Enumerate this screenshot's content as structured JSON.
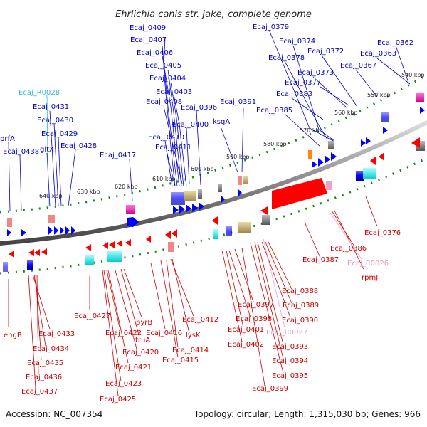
{
  "title": "Ehrlichia canis str. Jake, complete genome",
  "footer": {
    "accession": "Accession: NC_007354",
    "summary": "Topology: circular; Length: 1,315,030 bp; Genes: 966"
  },
  "colors": {
    "forward_gene": "#0000ff",
    "reverse_gene": "#ff0000",
    "rna_forward": "#33bbdd",
    "rna_reverse": "#f0a0c8",
    "backbone": "#888888",
    "tick_dots": "#118811",
    "ruler_text": "#222222"
  },
  "ruler_ticks": [
    "540 kbp",
    "550 kbp",
    "560 kbp",
    "570 kbp",
    "580 kbp",
    "590 kbp",
    "600 kbp",
    "610 kbp",
    "620 kbp",
    "630 kbp",
    "640 kbp"
  ],
  "forward_labels": [
    "Ecaj_0409",
    "Ecaj_0407",
    "Ecaj_0406",
    "Ecaj_0405",
    "Ecaj_0404",
    "Ecaj_0403",
    "Ecaj_0408",
    "Ecaj_0400",
    "Ecaj_0410",
    "Ecaj_0411",
    "Ecaj_0417",
    "Ecaj_0396",
    "ksgA",
    "Ecaj_0391",
    "Ecaj_0385",
    "Ecaj_0379",
    "Ecaj_0374",
    "Ecaj_0378",
    "Ecaj_0372",
    "Ecaj_0373",
    "Ecaj_0377",
    "Ecaj_0383",
    "Ecaj_0367",
    "Ecaj_0363",
    "Ecaj_0362",
    "Ecaj_0431",
    "Ecaj_0430",
    "Ecaj_0429",
    "gltX",
    "Ecaj_0428",
    "prfA",
    "Ecaj_0438"
  ],
  "rna_forward_labels": [
    "Ecaj_R0028"
  ],
  "reverse_labels": [
    "engB",
    "Ecaj_0433",
    "Ecaj_0434",
    "Ecaj_0435",
    "Ecaj_0436",
    "Ecaj_0437",
    "Ecaj_0427",
    "Ecaj_0422",
    "Ecaj_0421",
    "Ecaj_0423",
    "Ecaj_0425",
    "pyrB",
    "truA",
    "Ecaj_0420",
    "Ecaj_0416",
    "Ecaj_0412",
    "lysK",
    "Ecaj_0414",
    "Ecaj_0415",
    "Ecaj_0397",
    "Ecaj_0398",
    "Ecaj_0401",
    "Ecaj_0402",
    "Ecaj_0399",
    "Ecaj_0388",
    "Ecaj_0389",
    "Ecaj_0390",
    "Ecaj_0393",
    "Ecaj_0394",
    "Ecaj_0395",
    "Ecaj_0387",
    "Ecaj_0386",
    "Ecaj_0376",
    "rpmJ"
  ],
  "rna_reverse_labels": [
    "Ecaj_R0027",
    "Ecaj_R0026"
  ]
}
